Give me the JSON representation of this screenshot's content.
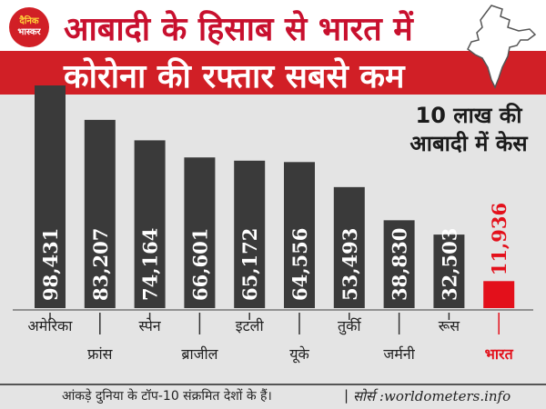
{
  "header": {
    "title_line1": "आबादी के हिसाब से भारत में",
    "title_line2": "कोरोना की रफ्तार सबसे कम",
    "logo_line1": "दैनिक",
    "logo_line2": "भास्कर"
  },
  "annotation": {
    "line1": "10 लाख की",
    "line2": "आबादी में केस"
  },
  "footer": {
    "note": "आंकड़े दुनिया के टॉप-10 संक्रमित देशों के हैं।",
    "separator": "|",
    "source": "सोर्स :worldometers.info"
  },
  "colors": {
    "bar": "#3a3a3a",
    "highlight": "#e3101b",
    "header_red": "#d11f26",
    "background": "#e4e4e4"
  },
  "icons": [
    "india-map-icon",
    "dainik-bhaskar-logo"
  ],
  "chart_data": {
    "type": "bar",
    "title": "",
    "xlabel": "",
    "ylabel": "",
    "categories": [
      "अमेरिका",
      "फ्रांस",
      "स्पेन",
      "ब्राजील",
      "इटली",
      "यूके",
      "तुर्की",
      "जर्मनी",
      "रूस",
      "भारत"
    ],
    "values": [
      98431,
      83207,
      74164,
      66601,
      65172,
      64556,
      53493,
      38830,
      32503,
      11936
    ],
    "value_labels": [
      "98,431",
      "83,207",
      "74,164",
      "66,601",
      "65,172",
      "64,556",
      "53,493",
      "38,830",
      "32,503",
      "11,936"
    ],
    "highlight_index": 9,
    "ylim": [
      0,
      98431
    ],
    "grid": false,
    "legend": "none"
  }
}
